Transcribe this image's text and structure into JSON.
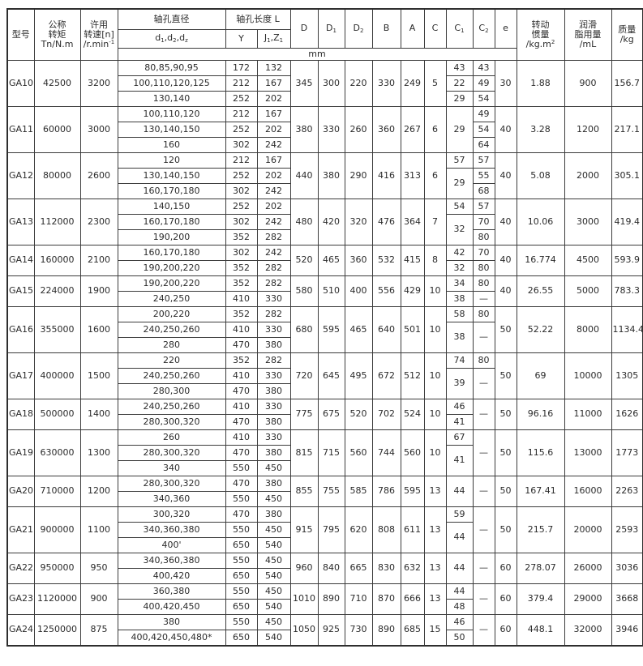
{
  "unit_row": "mm",
  "header": {
    "model": "型号",
    "torque": "公称\n转矩\nTn/N.m",
    "speed": "许用\n转速[n]\n/r.min^{-1}",
    "bore_diameter_group": "轴孔直径",
    "bore_diameter_sub": "d_{1},d_{2},d_{z}",
    "bore_length_group": "轴孔长度 L",
    "bore_length_y": "Y",
    "bore_length_jz": "J_{1},Z_{1}",
    "D": "D",
    "D1": "D_{1}",
    "D2": "D_{2}",
    "B": "B",
    "A": "A",
    "C": "C",
    "C1": "C_{1}",
    "C2": "C_{2}",
    "e": "e",
    "inertia": "转动\n惯量\n/kg.m^{2}",
    "grease": "润滑\n脂用量\n/mL",
    "mass": "质量\n/kg"
  },
  "models": [
    {
      "model": "GA10",
      "torque": "42500",
      "speed": "3200",
      "D": "345",
      "D1": "300",
      "D2": "220",
      "B": "330",
      "A": "249",
      "C": "5",
      "e": "30",
      "inertia": "1.88",
      "grease": "900",
      "mass": "156.7",
      "rows": [
        {
          "d": "80,85,90,95",
          "y": "172",
          "jz": "132",
          "c1": "43",
          "c1s": 1,
          "c2": "43",
          "c2s": 1
        },
        {
          "d": "100,110,120,125",
          "y": "212",
          "jz": "167",
          "c1": "22",
          "c1s": 1,
          "c2": "49",
          "c2s": 1
        },
        {
          "d": "130,140",
          "y": "252",
          "jz": "202",
          "c1": "29",
          "c1s": 1,
          "c2": "54",
          "c2s": 1
        }
      ]
    },
    {
      "model": "GA11",
      "torque": "60000",
      "speed": "3000",
      "D": "380",
      "D1": "330",
      "D2": "260",
      "B": "360",
      "A": "267",
      "C": "6",
      "e": "40",
      "inertia": "3.28",
      "grease": "1200",
      "mass": "217.1",
      "rows": [
        {
          "d": "100,110,120",
          "y": "212",
          "jz": "167",
          "c1": "29",
          "c1s": 3,
          "c2": "49",
          "c2s": 1
        },
        {
          "d": "130,140,150",
          "y": "252",
          "jz": "202",
          "c1": null,
          "c2": "54",
          "c2s": 1
        },
        {
          "d": "160",
          "y": "302",
          "jz": "242",
          "c1": null,
          "c2": "64",
          "c2s": 1
        }
      ]
    },
    {
      "model": "GA12",
      "torque": "80000",
      "speed": "2600",
      "D": "440",
      "D1": "380",
      "D2": "290",
      "B": "416",
      "A": "313",
      "C": "6",
      "e": "40",
      "inertia": "5.08",
      "grease": "2000",
      "mass": "305.1",
      "rows": [
        {
          "d": "120",
          "y": "212",
          "jz": "167",
          "c1": "57",
          "c1s": 1,
          "c2": "57",
          "c2s": 1
        },
        {
          "d": "130,140,150",
          "y": "252",
          "jz": "202",
          "c1": "29",
          "c1s": 2,
          "c2": "55",
          "c2s": 1
        },
        {
          "d": "160,170,180",
          "y": "302",
          "jz": "242",
          "c1": null,
          "c2": "68",
          "c2s": 1
        }
      ]
    },
    {
      "model": "GA13",
      "torque": "112000",
      "speed": "2300",
      "D": "480",
      "D1": "420",
      "D2": "320",
      "B": "476",
      "A": "364",
      "C": "7",
      "e": "40",
      "inertia": "10.06",
      "grease": "3000",
      "mass": "419.4",
      "rows": [
        {
          "d": "140,150",
          "y": "252",
          "jz": "202",
          "c1": "54",
          "c1s": 1,
          "c2": "57",
          "c2s": 1
        },
        {
          "d": "160,170,180",
          "y": "302",
          "jz": "242",
          "c1": "32",
          "c1s": 2,
          "c2": "70",
          "c2s": 1
        },
        {
          "d": "190,200",
          "y": "352",
          "jz": "282",
          "c1": null,
          "c2": "80",
          "c2s": 1
        }
      ]
    },
    {
      "model": "GA14",
      "torque": "160000",
      "speed": "2100",
      "D": "520",
      "D1": "465",
      "D2": "360",
      "B": "532",
      "A": "415",
      "C": "8",
      "e": "40",
      "inertia": "16.774",
      "grease": "4500",
      "mass": "593.9",
      "rows": [
        {
          "d": "160,170,180",
          "y": "302",
          "jz": "242",
          "c1": "42",
          "c1s": 1,
          "c2": "70",
          "c2s": 1
        },
        {
          "d": "190,200,220",
          "y": "352",
          "jz": "282",
          "c1": "32",
          "c1s": 1,
          "c2": "80",
          "c2s": 1
        }
      ]
    },
    {
      "model": "GA15",
      "torque": "224000",
      "speed": "1900",
      "D": "580",
      "D1": "510",
      "D2": "400",
      "B": "556",
      "A": "429",
      "C": "10",
      "e": "40",
      "inertia": "26.55",
      "grease": "5000",
      "mass": "783.3",
      "rows": [
        {
          "d": "190,200,220",
          "y": "352",
          "jz": "282",
          "c1": "34",
          "c1s": 1,
          "c2": "80",
          "c2s": 1
        },
        {
          "d": "240,250",
          "y": "410",
          "jz": "330",
          "c1": "38",
          "c1s": 1,
          "c2": "—",
          "c2s": 1
        }
      ]
    },
    {
      "model": "GA16",
      "torque": "355000",
      "speed": "1600",
      "D": "680",
      "D1": "595",
      "D2": "465",
      "B": "640",
      "A": "501",
      "C": "10",
      "e": "50",
      "inertia": "52.22",
      "grease": "8000",
      "mass": "1134.4",
      "rows": [
        {
          "d": "200,220",
          "y": "352",
          "jz": "282",
          "c1": "58",
          "c1s": 1,
          "c2": "80",
          "c2s": 1
        },
        {
          "d": "240,250,260",
          "y": "410",
          "jz": "330",
          "c1": "38",
          "c1s": 2,
          "c2": "—",
          "c2s": 2
        },
        {
          "d": "280",
          "y": "470",
          "jz": "380",
          "c1": null,
          "c2": null
        }
      ]
    },
    {
      "model": "GA17",
      "torque": "400000",
      "speed": "1500",
      "D": "720",
      "D1": "645",
      "D2": "495",
      "B": "672",
      "A": "512",
      "C": "10",
      "e": "50",
      "inertia": "69",
      "grease": "10000",
      "mass": "1305",
      "rows": [
        {
          "d": "220",
          "y": "352",
          "jz": "282",
          "c1": "74",
          "c1s": 1,
          "c2": "80",
          "c2s": 1
        },
        {
          "d": "240,250,260",
          "y": "410",
          "jz": "330",
          "c1": "39",
          "c1s": 2,
          "c2": "—",
          "c2s": 2
        },
        {
          "d": "280,300",
          "y": "470",
          "jz": "380",
          "c1": null,
          "c2": null
        }
      ]
    },
    {
      "model": "GA18",
      "torque": "500000",
      "speed": "1400",
      "D": "775",
      "D1": "675",
      "D2": "520",
      "B": "702",
      "A": "524",
      "C": "10",
      "e": "50",
      "inertia": "96.16",
      "grease": "11000",
      "mass": "1626",
      "rows": [
        {
          "d": "240,250,260",
          "y": "410",
          "jz": "330",
          "c1": "46",
          "c1s": 1,
          "c2": "—",
          "c2s": 2
        },
        {
          "d": "280,300,320",
          "y": "470",
          "jz": "380",
          "c1": "41",
          "c1s": 1,
          "c2": null
        }
      ]
    },
    {
      "model": "GA19",
      "torque": "630000",
      "speed": "1300",
      "D": "815",
      "D1": "715",
      "D2": "560",
      "B": "744",
      "A": "560",
      "C": "10",
      "e": "50",
      "inertia": "115.6",
      "grease": "13000",
      "mass": "1773",
      "rows": [
        {
          "d": "260",
          "y": "410",
          "jz": "330",
          "c1": "67",
          "c1s": 1,
          "c2": "—",
          "c2s": 3
        },
        {
          "d": "280,300,320",
          "y": "470",
          "jz": "380",
          "c1": "41",
          "c1s": 2,
          "c2": null
        },
        {
          "d": "340",
          "y": "550",
          "jz": "450",
          "c1": null,
          "c2": null
        }
      ]
    },
    {
      "model": "GA20",
      "torque": "710000",
      "speed": "1200",
      "D": "855",
      "D1": "755",
      "D2": "585",
      "B": "786",
      "A": "595",
      "C": "13",
      "e": "50",
      "inertia": "167.41",
      "grease": "16000",
      "mass": "2263",
      "rows": [
        {
          "d": "280,300,320",
          "y": "470",
          "jz": "380",
          "c1": "44",
          "c1s": 2,
          "c2": "—",
          "c2s": 2
        },
        {
          "d": "340,360",
          "y": "550",
          "jz": "450",
          "c1": null,
          "c2": null
        }
      ]
    },
    {
      "model": "GA21",
      "torque": "900000",
      "speed": "1100",
      "D": "915",
      "D1": "795",
      "D2": "620",
      "B": "808",
      "A": "611",
      "C": "13",
      "e": "50",
      "inertia": "215.7",
      "grease": "20000",
      "mass": "2593",
      "rows": [
        {
          "d": "300,320",
          "y": "470",
          "jz": "380",
          "c1": "59",
          "c1s": 1,
          "c2": "—",
          "c2s": 3
        },
        {
          "d": "340,360,380",
          "y": "550",
          "jz": "450",
          "c1": "44",
          "c1s": 2,
          "c2": null
        },
        {
          "d": "400'",
          "y": "650",
          "jz": "540",
          "c1": null,
          "c2": null
        }
      ]
    },
    {
      "model": "GA22",
      "torque": "950000",
      "speed": "950",
      "D": "960",
      "D1": "840",
      "D2": "665",
      "B": "830",
      "A": "632",
      "C": "13",
      "e": "60",
      "inertia": "278.07",
      "grease": "26000",
      "mass": "3036",
      "rows": [
        {
          "d": "340,360,380",
          "y": "550",
          "jz": "450",
          "c1": "44",
          "c1s": 2,
          "c2": "—",
          "c2s": 2
        },
        {
          "d": "400,420",
          "y": "650",
          "jz": "540",
          "c1": null,
          "c2": null
        }
      ]
    },
    {
      "model": "GA23",
      "torque": "1120000",
      "speed": "900",
      "D": "1010",
      "D1": "890",
      "D2": "710",
      "B": "870",
      "A": "666",
      "C": "13",
      "e": "60",
      "inertia": "379.4",
      "grease": "29000",
      "mass": "3668",
      "rows": [
        {
          "d": "360,380",
          "y": "550",
          "jz": "450",
          "c1": "44",
          "c1s": 1,
          "c2": "—",
          "c2s": 2
        },
        {
          "d": "400,420,450",
          "y": "650",
          "jz": "540",
          "c1": "48",
          "c1s": 1,
          "c2": null
        }
      ]
    },
    {
      "model": "GA24",
      "torque": "1250000",
      "speed": "875",
      "D": "1050",
      "D1": "925",
      "D2": "730",
      "B": "890",
      "A": "685",
      "C": "15",
      "e": "60",
      "inertia": "448.1",
      "grease": "32000",
      "mass": "3946",
      "rows": [
        {
          "d": "380",
          "y": "550",
          "jz": "450",
          "c1": "46",
          "c1s": 1,
          "c2": "—",
          "c2s": 2
        },
        {
          "d": "400,420,450,480*",
          "y": "650",
          "jz": "540",
          "c1": "50",
          "c1s": 1,
          "c2": null
        }
      ]
    }
  ]
}
